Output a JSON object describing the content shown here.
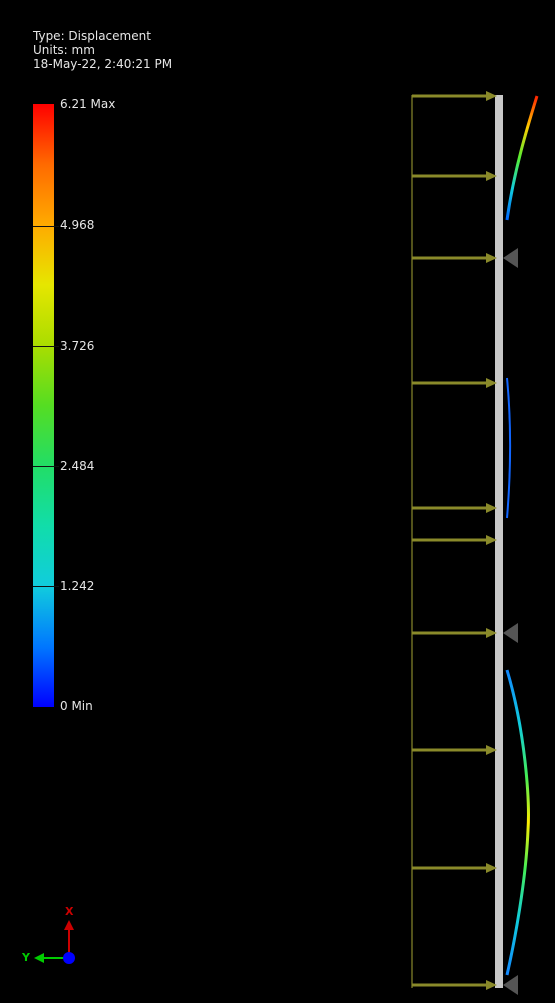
{
  "info": {
    "type_line": "Type: Displacement",
    "units_line": "Units: mm",
    "timestamp_line": "18-May-22, 2:40:21 PM"
  },
  "legend": {
    "labels": [
      "6.21 Max",
      "4.968",
      "3.726",
      "2.484",
      "1.242",
      "0 Min"
    ],
    "max_value": 6.21,
    "min_value": 0,
    "colors": {
      "max": "#ff0000",
      "min": "#0000ff"
    }
  },
  "triad": {
    "x_label": "X",
    "y_label": "Y",
    "x_color": "#cc0000",
    "y_color": "#00cc00",
    "z_color": "#0000ff"
  },
  "model": {
    "beam_color": "#c8c8c8",
    "load_arrow_color": "#8a8a2a",
    "support_color": "#555555"
  }
}
